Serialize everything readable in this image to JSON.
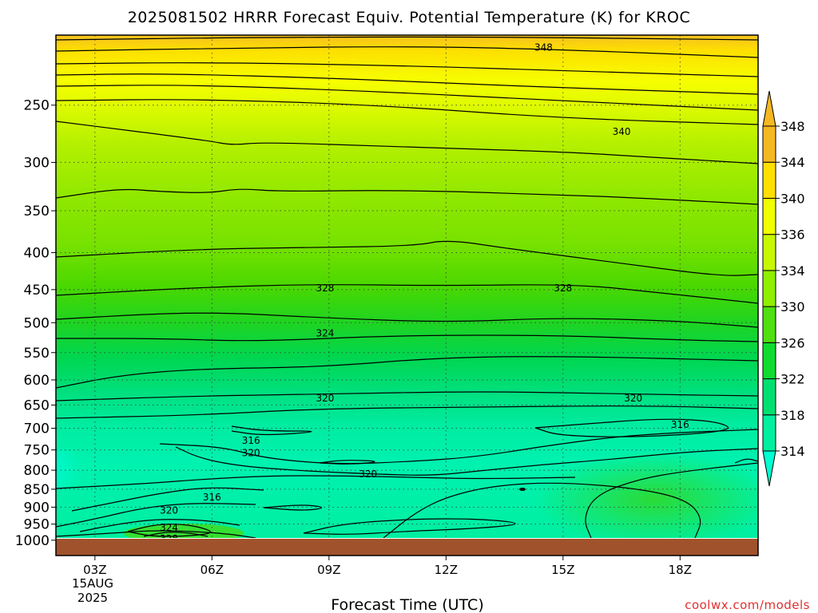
{
  "chart_data": {
    "type": "heatmap",
    "title": "2025081502 HRRR Forecast Equiv. Potential Temperature (K) for KROC",
    "xlabel": "Forecast Time (UTC)",
    "ylabel": "",
    "credit": "coolwx.com/models",
    "x_ticks": [
      {
        "label": "03Z",
        "hour": 3
      },
      {
        "label": "06Z",
        "hour": 6
      },
      {
        "label": "09Z",
        "hour": 9
      },
      {
        "label": "12Z",
        "hour": 12
      },
      {
        "label": "15Z",
        "hour": 15
      },
      {
        "label": "18Z",
        "hour": 18
      }
    ],
    "x_date_label": "15AUG",
    "x_year_label": "2025",
    "xlim": [
      2,
      20
    ],
    "y_axis": {
      "unit": "hPa",
      "scale": "log",
      "inverted": true,
      "range": [
        1050,
        200
      ]
    },
    "y_ticks": [
      250,
      300,
      350,
      400,
      450,
      500,
      550,
      600,
      650,
      700,
      750,
      800,
      850,
      900,
      950,
      1000
    ],
    "grid": true,
    "colorbar": {
      "levels": [
        314,
        318,
        322,
        326,
        330,
        334,
        336,
        340,
        344,
        348
      ],
      "colors": [
        "#00ffd2",
        "#00f0a0",
        "#00e070",
        "#10dc30",
        "#50e010",
        "#90ee00",
        "#c8f800",
        "#f0ff00",
        "#ffdf00",
        "#f5b820"
      ],
      "extend": "both",
      "placement": "right"
    },
    "ground_color": "#a0522d",
    "contour_labels": [
      {
        "value": "348",
        "hour": 14.5,
        "p": 208
      },
      {
        "value": "340",
        "hour": 16.5,
        "p": 272
      },
      {
        "value": "328",
        "hour": 8.9,
        "p": 448
      },
      {
        "value": "328",
        "hour": 15.0,
        "p": 448
      },
      {
        "value": "324",
        "hour": 8.9,
        "p": 517
      },
      {
        "value": "320",
        "hour": 8.9,
        "p": 636
      },
      {
        "value": "320",
        "hour": 16.8,
        "p": 636
      },
      {
        "value": "316",
        "hour": 18.0,
        "p": 692
      },
      {
        "value": "316",
        "hour": 7.0,
        "p": 728
      },
      {
        "value": "320",
        "hour": 7.0,
        "p": 757
      },
      {
        "value": "320",
        "hour": 10.0,
        "p": 810
      },
      {
        "value": "316",
        "hour": 6.0,
        "p": 872
      },
      {
        "value": "320",
        "hour": 4.9,
        "p": 910
      },
      {
        "value": "324",
        "hour": 4.9,
        "p": 960
      },
      {
        "value": "328",
        "hour": 4.9,
        "p": 995
      }
    ]
  }
}
